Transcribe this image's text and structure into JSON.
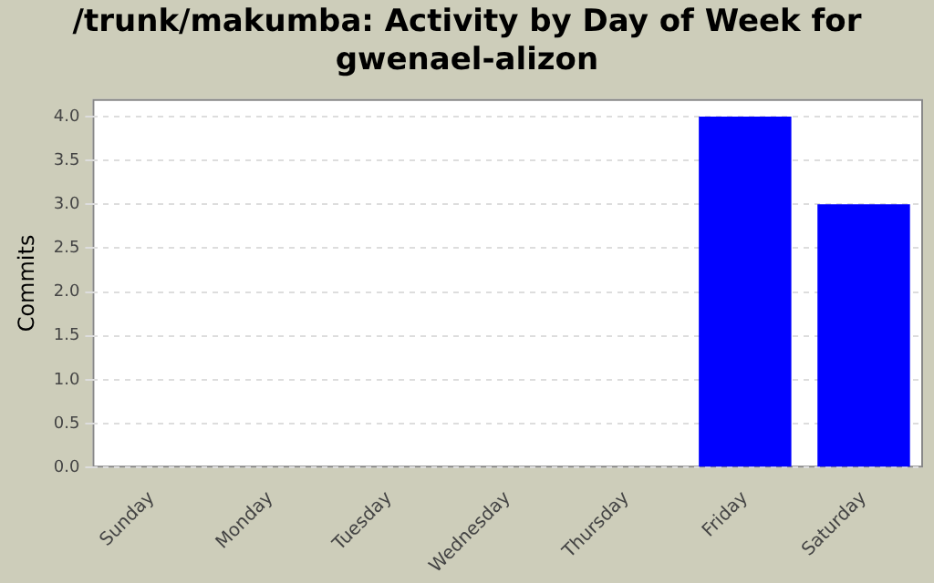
{
  "chart_data": {
    "type": "bar",
    "title": "/trunk/makumba: Activity by Day of Week for gwenael-alizon",
    "ylabel": "Commits",
    "categories": [
      "Sunday",
      "Monday",
      "Tuesday",
      "Wednesday",
      "Thursday",
      "Friday",
      "Saturday"
    ],
    "values": [
      0,
      0,
      0,
      0,
      0,
      4,
      3
    ],
    "color": "#0000ff",
    "ylim": [
      0,
      4.2
    ],
    "yticks": [
      {
        "value": 0,
        "label": "0.0"
      },
      {
        "value": 0.5,
        "label": "0.5"
      },
      {
        "value": 1,
        "label": "1.0"
      },
      {
        "value": 1.5,
        "label": "1.5"
      },
      {
        "value": 2,
        "label": "2.0"
      },
      {
        "value": 2.5,
        "label": "2.5"
      },
      {
        "value": 3,
        "label": "3.0"
      },
      {
        "value": 3.5,
        "label": "3.5"
      },
      {
        "value": 4,
        "label": "4.0"
      }
    ],
    "grid": "y",
    "legend": false
  }
}
